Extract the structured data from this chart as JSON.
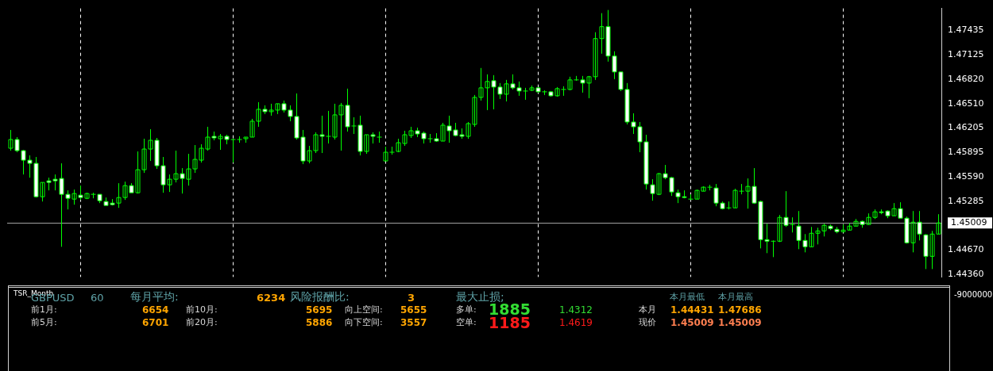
{
  "chart_data": [
    {
      "type": "candlestick",
      "color": "#00ff00",
      "colors": [
        "#00ff00",
        "#ffffff",
        "#ffffff",
        "#ffffff",
        "#ffffff",
        "#00ff00",
        "#ffffff",
        "#ffffff",
        "#ffffff",
        "#ffffff",
        "#00ff00",
        "#ffffff",
        "#00ff00",
        "#00ff00",
        "#ffffff",
        "#ffffff",
        "#ffffff",
        "#00ff00",
        "#00ff00",
        "#ffffff",
        "#00ff00",
        "#00ff00",
        "#00ff00",
        "#ffffff",
        "#ffffff",
        "#00ff00",
        "#00ff00",
        "#ffffff",
        "#00ff00",
        "#00ff00",
        "#00ff00",
        "#00ff00",
        "#ffffff",
        "#00ff00",
        "#ffffff",
        "#00ff00",
        "#00ff00",
        "#00ff00",
        "#00ff00",
        "#00ff00",
        "#ffffff",
        "#00ff00",
        "#00ff00",
        "#ffffff",
        "#ffffff",
        "#ffffff",
        "#ffffff",
        "#00ff00",
        "#00ff00",
        "#ffffff",
        "#00ff00",
        "#00ff00",
        "#00ff00",
        "#ffffff",
        "#00ff00",
        "#ffffff",
        "#00ff00",
        "#ffffff",
        "#00ff00",
        "#00ff00",
        "#00ff00",
        "#00ff00",
        "#00ff00",
        "#00ff00",
        "#ffffff",
        "#ffffff",
        "#00ff00",
        "#ffffff",
        "#00ff00",
        "#ffffff",
        "#ffffff",
        "#ffffff",
        "#00ff00",
        "#00ff00",
        "#00ff00",
        "#00ff00",
        "#ffffff",
        "#ffffff",
        "#00ff00",
        "#ffffff",
        "#ffffff",
        "#00ff00",
        "#00ff00",
        "#ffffff",
        "#00ff00",
        "#ffffff",
        "#00ff00",
        "#00ff00",
        "#00ff00",
        "#00ff00",
        "#ffffff",
        "#00ff00",
        "#00ff00",
        "#00ff00",
        "#ffffff",
        "#ffffff",
        "#ffffff",
        "#ffffff",
        "#ffffff",
        "#ffffff",
        "#ffffff",
        "#ffffff",
        "#00ff00",
        "#ffffff",
        "#ffffff",
        "#ffffff",
        "#ffffff",
        "#00ff00",
        "#00ff00",
        "#00ff00",
        "#00ff00",
        "#ffffff",
        "#ffffff",
        "#00ff00",
        "#00ff00",
        "#00ff00",
        "#00ff00",
        "#ffffff",
        "#ffffff",
        "#ffffff",
        "#00ff00",
        "#00ff00",
        "#ffffff",
        "#00ff00",
        "#ffffff",
        "#ffffff",
        "#00ff00",
        "#00ff00",
        "#00ff00",
        "#ffffff",
        "#ffffff",
        "#00ff00",
        "#00ff00",
        "#00ff00",
        "#ffffff",
        "#00ff00",
        "#00ff00",
        "#ffffff",
        "#ffffff",
        "#00ff00",
        "#ffffff",
        "#ffffff",
        "#00ff00",
        "#ffffff",
        "#ffffff",
        "#00ff00",
        "#00ff00"
      ],
      "categories": [
        null,
        null,
        null,
        null,
        null,
        null,
        null,
        null,
        null,
        null,
        null,
        null,
        null,
        null,
        null,
        null,
        null,
        null,
        null,
        null,
        null,
        null,
        null,
        null,
        null,
        null,
        null,
        null,
        null,
        null,
        null,
        null,
        null,
        null,
        null,
        null,
        null,
        null,
        null,
        null,
        null,
        null,
        null,
        null,
        null,
        null,
        null,
        null,
        null,
        null,
        null,
        null,
        null,
        null,
        null,
        null,
        null,
        null,
        null,
        null,
        null,
        null,
        null,
        null,
        null,
        null,
        null,
        null,
        null,
        null,
        null,
        null,
        null,
        null,
        null,
        null,
        null,
        null,
        null,
        null,
        null,
        null,
        null,
        null,
        null,
        null,
        null,
        null,
        null,
        null,
        null,
        null,
        null,
        null,
        null,
        null,
        null,
        null,
        null,
        null,
        null,
        null,
        null,
        null,
        null,
        null,
        null,
        null,
        null,
        null,
        null,
        null,
        null,
        null,
        null,
        null,
        null,
        null,
        null,
        null,
        null,
        null,
        null,
        null,
        null,
        null,
        null,
        null,
        null,
        null,
        null,
        null,
        null,
        null,
        null,
        null,
        null,
        null,
        null,
        null,
        null,
        null,
        null,
        null,
        null,
        null,
        null
      ],
      "ohlc": [
        [
          1.4595,
          1.4618,
          1.4592,
          1.4606
        ],
        [
          1.4606,
          1.4609,
          1.459,
          1.4592
        ],
        [
          1.4592,
          1.4593,
          1.4562,
          1.458
        ],
        [
          1.458,
          1.4586,
          1.4558,
          1.4576
        ],
        [
          1.4576,
          1.4584,
          1.4533,
          1.4534
        ],
        [
          1.4534,
          1.4552,
          1.4528,
          1.4552
        ],
        [
          1.4554,
          1.4558,
          1.4542,
          1.4552
        ],
        [
          1.4556,
          1.4562,
          1.4542,
          1.4554
        ],
        [
          1.4557,
          1.4576,
          1.4471,
          1.4537
        ],
        [
          1.4537,
          1.4542,
          1.4518,
          1.4532
        ],
        [
          1.4531,
          1.4543,
          1.4524,
          1.4538
        ],
        [
          1.4536,
          1.4548,
          1.453,
          1.4533
        ],
        [
          1.4532,
          1.4539,
          1.4531,
          1.4538
        ],
        [
          1.4537,
          1.4539,
          1.4532,
          1.4537
        ],
        [
          1.4537,
          1.4537,
          1.4526,
          1.4529
        ],
        [
          1.4528,
          1.4533,
          1.4523,
          1.4523
        ],
        [
          1.4526,
          1.4531,
          1.4523,
          1.4524
        ],
        [
          1.4526,
          1.4551,
          1.452,
          1.4533
        ],
        [
          1.4533,
          1.4553,
          1.453,
          1.4548
        ],
        [
          1.4548,
          1.4551,
          1.4539,
          1.4539
        ],
        [
          1.4539,
          1.4591,
          1.4538,
          1.4568
        ],
        [
          1.4568,
          1.4607,
          1.4564,
          1.4594
        ],
        [
          1.4594,
          1.4619,
          1.4579,
          1.4605
        ],
        [
          1.4605,
          1.4608,
          1.4569,
          1.4573
        ],
        [
          1.4573,
          1.4584,
          1.4539,
          1.4549
        ],
        [
          1.4549,
          1.4562,
          1.454,
          1.4556
        ],
        [
          1.4556,
          1.4592,
          1.4552,
          1.4563
        ],
        [
          1.4563,
          1.457,
          1.4538,
          1.4557
        ],
        [
          1.4556,
          1.4588,
          1.4548,
          1.4569
        ],
        [
          1.4569,
          1.4599,
          1.4564,
          1.4581
        ],
        [
          1.458,
          1.46,
          1.4577,
          1.4595
        ],
        [
          1.4594,
          1.4622,
          1.4592,
          1.4609
        ],
        [
          1.461,
          1.4616,
          1.4605,
          1.4608
        ],
        [
          1.4607,
          1.4613,
          1.4593,
          1.461
        ],
        [
          1.461,
          1.4612,
          1.46,
          1.4606
        ],
        [
          1.4606,
          1.4607,
          1.4577,
          1.4606
        ],
        [
          1.4606,
          1.461,
          1.4602,
          1.4606
        ],
        [
          1.4607,
          1.4609,
          1.4602,
          1.4609
        ],
        [
          1.4609,
          1.4632,
          1.4609,
          1.4629
        ],
        [
          1.4629,
          1.4653,
          1.4622,
          1.4644
        ],
        [
          1.4644,
          1.4649,
          1.4638,
          1.4641
        ],
        [
          1.4641,
          1.4651,
          1.4636,
          1.4643
        ],
        [
          1.4643,
          1.4651,
          1.4638,
          1.4651
        ],
        [
          1.4651,
          1.4655,
          1.464,
          1.4643
        ],
        [
          1.4643,
          1.4649,
          1.4629,
          1.4635
        ],
        [
          1.4635,
          1.4664,
          1.4606,
          1.4608
        ],
        [
          1.4609,
          1.4618,
          1.4575,
          1.4579
        ],
        [
          1.4579,
          1.4598,
          1.4576,
          1.4592
        ],
        [
          1.4592,
          1.4615,
          1.4589,
          1.4612
        ],
        [
          1.4612,
          1.4636,
          1.4589,
          1.461
        ],
        [
          1.461,
          1.4642,
          1.4601,
          1.461
        ],
        [
          1.4609,
          1.4651,
          1.4606,
          1.4637
        ],
        [
          1.4637,
          1.4652,
          1.4592,
          1.4649
        ],
        [
          1.4649,
          1.467,
          1.4616,
          1.4622
        ],
        [
          1.4623,
          1.4634,
          1.4613,
          1.4623
        ],
        [
          1.4624,
          1.4636,
          1.4586,
          1.4591
        ],
        [
          1.4591,
          1.4612,
          1.4588,
          1.4612
        ],
        [
          1.4612,
          1.4615,
          1.4601,
          1.461
        ],
        [
          1.4609,
          1.4616,
          1.4602,
          1.4609
        ],
        [
          1.4579,
          1.4597,
          1.4579,
          1.459
        ],
        [
          1.459,
          1.4597,
          1.4587,
          1.459
        ],
        [
          1.4591,
          1.4607,
          1.459,
          1.4602
        ],
        [
          1.4601,
          1.4617,
          1.4598,
          1.4612
        ],
        [
          1.4611,
          1.4622,
          1.4608,
          1.4617
        ],
        [
          1.4617,
          1.4621,
          1.4609,
          1.4613
        ],
        [
          1.4614,
          1.4616,
          1.4601,
          1.4607
        ],
        [
          1.4607,
          1.4613,
          1.4602,
          1.4607
        ],
        [
          1.4607,
          1.4614,
          1.4603,
          1.4604
        ],
        [
          1.4604,
          1.4627,
          1.4604,
          1.4624
        ],
        [
          1.4623,
          1.4636,
          1.4602,
          1.4617
        ],
        [
          1.4618,
          1.4627,
          1.461,
          1.4611
        ],
        [
          1.4612,
          1.462,
          1.4607,
          1.461
        ],
        [
          1.461,
          1.4628,
          1.4607,
          1.4626
        ],
        [
          1.4625,
          1.4662,
          1.4622,
          1.4659
        ],
        [
          1.4659,
          1.4696,
          1.4655,
          1.4671
        ],
        [
          1.4671,
          1.4688,
          1.4643,
          1.4679
        ],
        [
          1.468,
          1.4687,
          1.4644,
          1.4672
        ],
        [
          1.4672,
          1.4677,
          1.4657,
          1.4663
        ],
        [
          1.4663,
          1.4681,
          1.4654,
          1.4676
        ],
        [
          1.4676,
          1.4688,
          1.4669,
          1.4671
        ],
        [
          1.4671,
          1.4679,
          1.4661,
          1.4667
        ],
        [
          1.4667,
          1.4671,
          1.4656,
          1.4667
        ],
        [
          1.4668,
          1.4674,
          1.4667,
          1.4671
        ],
        [
          1.4671,
          1.4671,
          1.4665,
          1.4666
        ],
        [
          1.4666,
          1.4668,
          1.4662,
          1.4666
        ],
        [
          1.4666,
          1.4667,
          1.466,
          1.4661
        ],
        [
          1.4661,
          1.4672,
          1.466,
          1.467
        ],
        [
          1.4669,
          1.4673,
          1.4661,
          1.4669
        ],
        [
          1.4669,
          1.4685,
          1.4668,
          1.4681
        ],
        [
          1.4681,
          1.4686,
          1.468,
          1.4681
        ],
        [
          1.4681,
          1.4686,
          1.4665,
          1.4677
        ],
        [
          1.4677,
          1.4686,
          1.4658,
          1.4685
        ],
        [
          1.4685,
          1.4741,
          1.4681,
          1.4733
        ],
        [
          1.4733,
          1.4765,
          1.4714,
          1.4748
        ],
        [
          1.4748,
          1.4769,
          1.4704,
          1.4711
        ],
        [
          1.4711,
          1.4717,
          1.4682,
          1.4691
        ],
        [
          1.4691,
          1.4691,
          1.4667,
          1.4669
        ],
        [
          1.4669,
          1.4677,
          1.4625,
          1.4628
        ],
        [
          1.4628,
          1.4639,
          1.4613,
          1.4622
        ],
        [
          1.4622,
          1.4628,
          1.459,
          1.4603
        ],
        [
          1.4603,
          1.4612,
          1.4543,
          1.455
        ],
        [
          1.4549,
          1.4556,
          1.4529,
          1.4538
        ],
        [
          1.4537,
          1.4564,
          1.4536,
          1.4563
        ],
        [
          1.4563,
          1.4574,
          1.4556,
          1.4558
        ],
        [
          1.4558,
          1.4559,
          1.4535,
          1.454
        ],
        [
          1.4539,
          1.4543,
          1.4526,
          1.4534
        ],
        [
          1.4534,
          1.4542,
          1.4532,
          1.4533
        ],
        [
          1.4531,
          1.4537,
          1.453,
          1.4531
        ],
        [
          1.4531,
          1.4543,
          1.4531,
          1.4542
        ],
        [
          1.4541,
          1.4547,
          1.4541,
          1.4546
        ],
        [
          1.4546,
          1.4549,
          1.4542,
          1.4546
        ],
        [
          1.4545,
          1.455,
          1.4522,
          1.4526
        ],
        [
          1.4526,
          1.4528,
          1.4518,
          1.4519
        ],
        [
          1.452,
          1.4528,
          1.4518,
          1.452
        ],
        [
          1.452,
          1.4544,
          1.452,
          1.4542
        ],
        [
          1.4541,
          1.455,
          1.4537,
          1.4541
        ],
        [
          1.4541,
          1.4557,
          1.4519,
          1.4547
        ],
        [
          1.4547,
          1.457,
          1.4525,
          1.4526
        ],
        [
          1.4528,
          1.4529,
          1.4469,
          1.448
        ],
        [
          1.448,
          1.45,
          1.4463,
          1.4478
        ],
        [
          1.4478,
          1.4479,
          1.4458,
          1.4478
        ],
        [
          1.4478,
          1.4511,
          1.4477,
          1.4508
        ],
        [
          1.4508,
          1.4541,
          1.4496,
          1.4498
        ],
        [
          1.4499,
          1.4508,
          1.4489,
          1.4499
        ],
        [
          1.4497,
          1.4516,
          1.4468,
          1.4479
        ],
        [
          1.4479,
          1.4487,
          1.4464,
          1.4471
        ],
        [
          1.4471,
          1.4496,
          1.4471,
          1.4488
        ],
        [
          1.4488,
          1.4495,
          1.4474,
          1.4491
        ],
        [
          1.4491,
          1.45,
          1.4484,
          1.4498
        ],
        [
          1.4497,
          1.4499,
          1.4492,
          1.4494
        ],
        [
          1.4493,
          1.4496,
          1.4488,
          1.449
        ],
        [
          1.449,
          1.4499,
          1.4489,
          1.4492
        ],
        [
          1.4492,
          1.4501,
          1.4492,
          1.4497
        ],
        [
          1.4497,
          1.4506,
          1.4497,
          1.4503
        ],
        [
          1.4503,
          1.4504,
          1.4495,
          1.4499
        ],
        [
          1.4499,
          1.4513,
          1.4499,
          1.4508
        ],
        [
          1.4508,
          1.4518,
          1.4506,
          1.4515
        ],
        [
          1.4515,
          1.4518,
          1.4512,
          1.4514
        ],
        [
          1.4516,
          1.4517,
          1.4507,
          1.451
        ],
        [
          1.451,
          1.4526,
          1.451,
          1.4519
        ],
        [
          1.4519,
          1.4527,
          1.4507,
          1.4507
        ],
        [
          1.4507,
          1.4509,
          1.4475,
          1.4476
        ],
        [
          1.4476,
          1.4516,
          1.4464,
          1.4502
        ],
        [
          1.4502,
          1.4516,
          1.4479,
          1.4487
        ],
        [
          1.4486,
          1.4487,
          1.4443,
          1.4459
        ],
        [
          1.4459,
          1.4491,
          1.4443,
          1.4487
        ],
        [
          1.4487,
          1.4512,
          1.4487,
          1.4501
        ]
      ],
      "ylim": [
        1.4433,
        1.4771
      ],
      "yticks": [
        {
          "value": 1.4436,
          "label": "1.44360"
        },
        {
          "value": 1.4467,
          "label": "1.44670"
        },
        {
          "value": 1.45285,
          "label": "1.45285"
        },
        {
          "value": 1.4559,
          "label": "1.45590"
        },
        {
          "value": 1.45895,
          "label": "1.45895"
        },
        {
          "value": 1.46205,
          "label": "1.46205"
        },
        {
          "value": 1.4651,
          "label": "1.46510"
        },
        {
          "value": 1.4682,
          "label": "1.46820"
        },
        {
          "value": 1.47125,
          "label": "1.47125"
        },
        {
          "value": 1.47435,
          "label": "1.47435"
        }
      ],
      "tick_labels": "y",
      "ref_lines": [
        {
          "axis": "y",
          "value": 1.45009,
          "label": "1.45009",
          "color": "#a0a0a0"
        }
      ]
    },
    {
      "type": "other",
      "annotations": [
        "TSR_Month",
        "GBPUSD",
        "60",
        "每月平均:",
        "6234",
        "风险报酬比:",
        "3",
        "最大止损;",
        "本月最低",
        "本月最高",
        "前1月:",
        "6654",
        "前10月:",
        "5695",
        "向上空间:",
        "5655",
        "多单:",
        "1885",
        "1.4312",
        "本月",
        "1.44431",
        "1.47686",
        "前5月:",
        "6701",
        "前20月:",
        "5886",
        "向下空间:",
        "3557",
        "空单:",
        "1185",
        "1.4619",
        "现价",
        "1.45009",
        "1.45009",
        "-9000000"
      ]
    }
  ]
}
